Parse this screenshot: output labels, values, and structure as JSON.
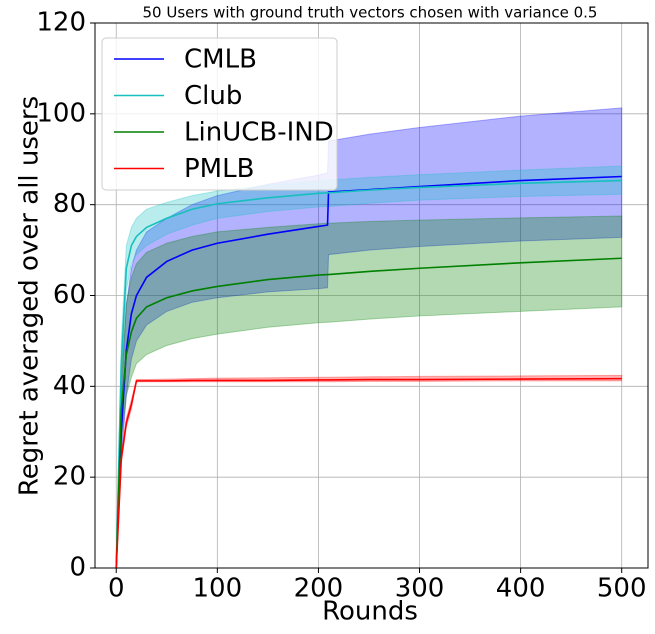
{
  "chart_data": {
    "type": "line",
    "title": "50 Users with ground truth vectors chosen with variance 0.5",
    "x_label": "Rounds",
    "y_label": "Regret averaged over all users",
    "x": [
      0,
      5,
      10,
      15,
      20,
      30,
      50,
      75,
      100,
      150,
      200,
      209,
      210,
      250,
      300,
      400,
      500
    ],
    "series": [
      {
        "name": "CMLB",
        "color": "#0000ff",
        "values": [
          0,
          30,
          48,
          56,
          60,
          64,
          67.5,
          70,
          71.5,
          73.5,
          75.2,
          75.5,
          82.8,
          83.3,
          84,
          85.3,
          86.2
        ],
        "upper": [
          0,
          38,
          58,
          66,
          70,
          74,
          77,
          80,
          82,
          84.5,
          86.5,
          87,
          94,
          95.5,
          97,
          99.5,
          101.3
        ],
        "lower": [
          0,
          24,
          38,
          46,
          50,
          53.5,
          56.5,
          58.5,
          59.5,
          60.8,
          61.5,
          61.7,
          69,
          70,
          70.8,
          72,
          72.8
        ]
      },
      {
        "name": "Club",
        "color": "#17bfbf",
        "values": [
          0,
          45,
          66,
          71,
          73,
          75,
          77,
          79,
          80.2,
          81.5,
          82.5,
          82.6,
          82.6,
          83.2,
          83.8,
          84.7,
          85.3
        ],
        "upper": [
          0,
          50,
          71,
          75,
          77,
          79,
          80.5,
          82,
          83,
          84.3,
          85.3,
          85.4,
          85.4,
          86,
          86.6,
          87.6,
          88.5
        ],
        "lower": [
          0,
          40,
          61,
          67,
          69,
          71,
          73.5,
          75.5,
          77,
          78.5,
          79.5,
          79.6,
          79.6,
          80.3,
          81,
          81.8,
          82.3
        ]
      },
      {
        "name": "LinUCB-IND",
        "color": "#008000",
        "values": [
          0,
          35,
          47,
          52,
          55,
          57.5,
          59.5,
          61,
          62,
          63.5,
          64.5,
          64.6,
          64.6,
          65.3,
          66,
          67.2,
          68.2
        ],
        "upper": [
          0,
          42,
          58,
          64,
          67,
          69.5,
          71.5,
          73,
          74,
          75,
          75.8,
          75.9,
          75.9,
          76.3,
          76.6,
          77.1,
          77.5
        ],
        "lower": [
          0,
          28,
          38,
          42,
          45,
          47,
          49,
          50.5,
          51.5,
          53,
          54,
          54.1,
          54.1,
          54.8,
          55.5,
          56.5,
          57.5
        ]
      },
      {
        "name": "PMLB",
        "color": "#ff0000",
        "values": [
          0,
          24,
          32,
          36,
          41.2,
          41.2,
          41.2,
          41.3,
          41.3,
          41.3,
          41.4,
          41.4,
          41.4,
          41.5,
          41.5,
          41.6,
          41.7
        ],
        "upper": [
          0,
          25,
          33,
          37,
          41.5,
          41.5,
          41.6,
          41.7,
          41.8,
          41.9,
          42,
          42,
          42,
          42.1,
          42.2,
          42.3,
          42.4
        ],
        "lower": [
          0,
          23,
          31,
          35,
          41,
          41,
          41,
          41,
          41,
          41,
          41,
          41,
          41,
          41.1,
          41.1,
          41.2,
          41.2
        ]
      }
    ],
    "band_opacity": 0.3,
    "xlim": [
      -21,
      526
    ],
    "ylim": [
      0,
      120
    ],
    "xticks": [
      0,
      100,
      200,
      300,
      400,
      500
    ],
    "yticks": [
      0,
      20,
      40,
      60,
      80,
      100,
      120
    ],
    "grid": true,
    "legend": "upper-left"
  }
}
